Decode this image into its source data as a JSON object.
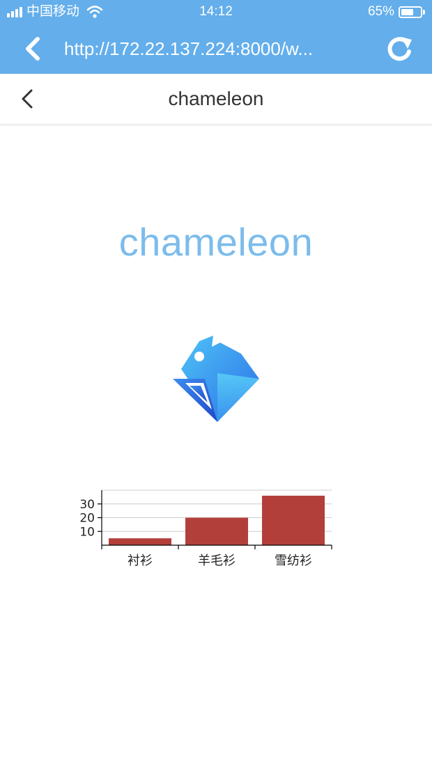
{
  "status_bar": {
    "carrier": "中国移动",
    "time": "14:12",
    "battery": "65%",
    "battery_level": 0.65
  },
  "browser": {
    "url": "http://172.22.137.224:8000/w...",
    "back_icon": "chevron-left-icon",
    "reload_icon": "reload-icon"
  },
  "navbar": {
    "title": "chameleon",
    "back_icon": "chevron-left-icon"
  },
  "hero": {
    "title": "chameleon",
    "logo_icon": "chameleon-logo-icon"
  },
  "colors": {
    "bar_top": "#63aeeb",
    "hero_text": "#7cbcec",
    "chart_bar": "#b33f3b"
  },
  "chart_data": {
    "type": "bar",
    "categories": [
      "衬衫",
      "羊毛衫",
      "雪纺衫"
    ],
    "values": [
      5,
      20,
      36
    ],
    "y_ticks": [
      "10",
      "20",
      "30"
    ],
    "ylim": [
      0,
      40
    ],
    "grid": true
  }
}
